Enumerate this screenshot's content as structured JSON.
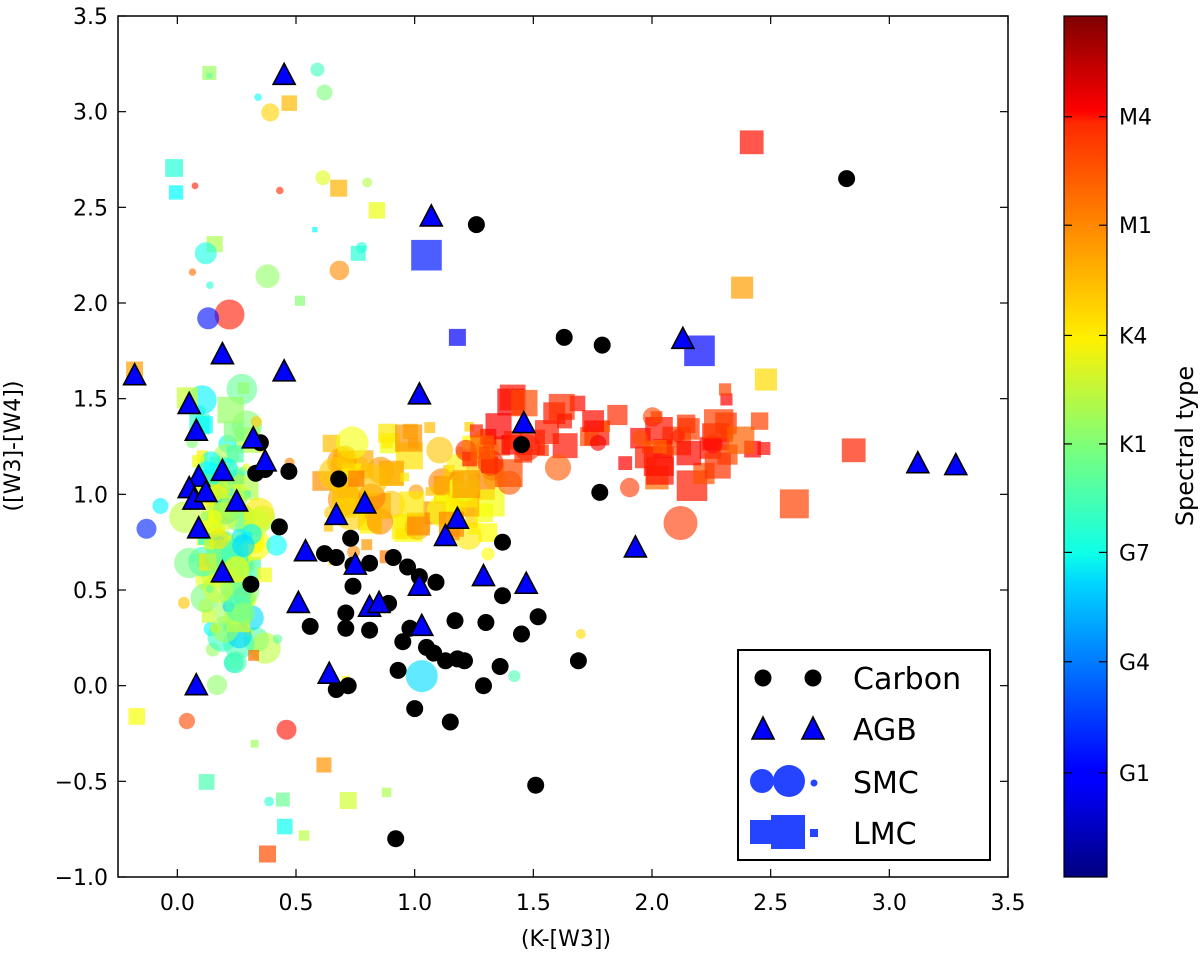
{
  "chart_data": {
    "type": "scatter",
    "xlabel": "(K-[W3])",
    "ylabel": "([W3]-[W4])",
    "xlim": [
      -0.25,
      3.5
    ],
    "ylim": [
      -1.0,
      3.5
    ],
    "x_ticks": [
      "0.0",
      "0.5",
      "1.0",
      "1.5",
      "2.0",
      "2.5",
      "3.0",
      "3.5"
    ],
    "y_ticks": [
      "−1.0",
      "−0.5",
      "0.0",
      "0.5",
      "1.0",
      "1.5",
      "2.0",
      "2.5",
      "3.0",
      "3.5"
    ],
    "colorbar": {
      "label": "Spectral type",
      "ticks": [
        {
          "label": "M4",
          "pos": 0.883
        },
        {
          "label": "M1",
          "pos": 0.757
        },
        {
          "label": "K4",
          "pos": 0.629
        },
        {
          "label": "K1",
          "pos": 0.503
        },
        {
          "label": "G7",
          "pos": 0.377
        },
        {
          "label": "G4",
          "pos": 0.25
        },
        {
          "label": "G1",
          "pos": 0.121
        }
      ]
    },
    "legend": {
      "placement": "lower-right",
      "entries": [
        {
          "label": "Carbon",
          "marker": "black-circle"
        },
        {
          "label": "AGB",
          "marker": "blue-triangle"
        },
        {
          "label": "SMC",
          "marker": "circle-sizes"
        },
        {
          "label": "LMC",
          "marker": "square-sizes"
        }
      ]
    },
    "series": [
      {
        "name": "Carbon",
        "marker": "circle",
        "color": "#000000",
        "points": [
          [
            0.35,
            1.27
          ],
          [
            0.47,
            1.12
          ],
          [
            0.37,
            1.13
          ],
          [
            0.68,
            1.08
          ],
          [
            0.73,
            0.77
          ],
          [
            0.74,
            0.63
          ],
          [
            0.62,
            0.69
          ],
          [
            0.67,
            0.67
          ],
          [
            0.74,
            0.52
          ],
          [
            0.81,
            0.64
          ],
          [
            0.91,
            0.67
          ],
          [
            0.97,
            0.62
          ],
          [
            1.02,
            0.57
          ],
          [
            1.09,
            0.54
          ],
          [
            0.89,
            0.43
          ],
          [
            0.95,
            0.23
          ],
          [
            0.98,
            0.3
          ],
          [
            1.05,
            0.2
          ],
          [
            1.08,
            0.17
          ],
          [
            1.13,
            0.13
          ],
          [
            1.18,
            0.14
          ],
          [
            1.21,
            0.13
          ],
          [
            1.17,
            0.34
          ],
          [
            1.3,
            0.33
          ],
          [
            1.37,
            0.47
          ],
          [
            1.37,
            0.75
          ],
          [
            1.52,
            0.36
          ],
          [
            1.45,
            0.27
          ],
          [
            1.36,
            0.1
          ],
          [
            1.29,
            0.0
          ],
          [
            1.15,
            -0.19
          ],
          [
            0.93,
            0.08
          ],
          [
            1.0,
            -0.12
          ],
          [
            1.51,
            -0.52
          ],
          [
            0.92,
            -0.8
          ],
          [
            0.67,
            -0.02
          ],
          [
            0.72,
            0.0
          ],
          [
            0.71,
            0.38
          ],
          [
            0.71,
            0.3
          ],
          [
            0.81,
            0.29
          ],
          [
            0.31,
            0.53
          ],
          [
            0.33,
            1.11
          ],
          [
            0.56,
            0.31
          ],
          [
            0.43,
            0.83
          ],
          [
            1.26,
            2.41
          ],
          [
            1.63,
            1.82
          ],
          [
            1.79,
            1.78
          ],
          [
            1.45,
            1.26
          ],
          [
            1.78,
            1.01
          ],
          [
            1.69,
            0.13
          ],
          [
            2.82,
            2.65
          ]
        ]
      },
      {
        "name": "AGB",
        "marker": "triangle",
        "color": "#0000ff",
        "points": [
          [
            0.45,
            3.19
          ],
          [
            1.07,
            2.45
          ],
          [
            -0.18,
            1.62
          ],
          [
            0.19,
            1.73
          ],
          [
            0.45,
            1.64
          ],
          [
            1.02,
            1.52
          ],
          [
            2.13,
            1.81
          ],
          [
            0.05,
            1.47
          ],
          [
            0.08,
            1.33
          ],
          [
            0.32,
            1.29
          ],
          [
            1.46,
            1.37
          ],
          [
            0.37,
            1.17
          ],
          [
            0.09,
            1.09
          ],
          [
            0.05,
            1.03
          ],
          [
            0.07,
            0.97
          ],
          [
            0.12,
            1.01
          ],
          [
            0.19,
            1.12
          ],
          [
            0.25,
            0.96
          ],
          [
            0.09,
            0.82
          ],
          [
            0.67,
            0.89
          ],
          [
            0.79,
            0.95
          ],
          [
            0.54,
            0.7
          ],
          [
            0.75,
            0.63
          ],
          [
            1.02,
            0.52
          ],
          [
            1.13,
            0.78
          ],
          [
            1.18,
            0.87
          ],
          [
            1.29,
            0.57
          ],
          [
            1.47,
            0.53
          ],
          [
            0.51,
            0.43
          ],
          [
            0.81,
            0.41
          ],
          [
            0.85,
            0.43
          ],
          [
            1.03,
            0.31
          ],
          [
            0.64,
            0.06
          ],
          [
            0.19,
            0.59
          ],
          [
            0.08,
            0.0
          ],
          [
            1.93,
            0.72
          ],
          [
            3.12,
            1.16
          ],
          [
            3.28,
            1.15
          ]
        ]
      }
    ],
    "cloud_seed": 7
  }
}
